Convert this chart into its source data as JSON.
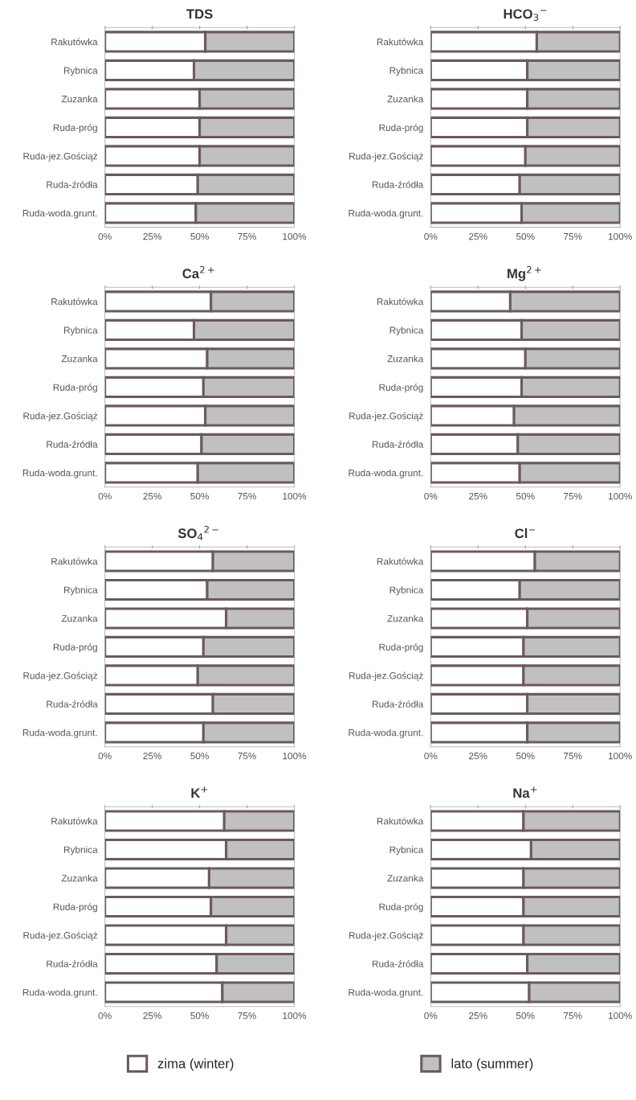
{
  "chart_data": [
    {
      "type": "bar",
      "orientation": "horizontal",
      "stacked": true,
      "title": "TDS",
      "categories": [
        "Rakutówka",
        "Rybnica",
        "Zuzanka",
        "Ruda-próg",
        "Ruda-jez.Gościąż",
        "Ruda-źródła",
        "Ruda-woda.grunt."
      ],
      "xlim": [
        0,
        100
      ],
      "xticks": [
        {
          "value": 0,
          "label": "0%"
        },
        {
          "value": 25,
          "label": "25%"
        },
        {
          "value": 50,
          "label": "50%"
        },
        {
          "value": 75,
          "label": "75%"
        },
        {
          "value": 100,
          "label": "100%"
        }
      ],
      "series": [
        {
          "color": "#ffffff",
          "values": [
            53,
            47,
            50,
            50,
            50,
            49,
            48
          ]
        },
        {
          "color": "#c0c0c0",
          "values": [
            47,
            53,
            50,
            50,
            50,
            51,
            52
          ]
        }
      ]
    },
    {
      "type": "bar",
      "orientation": "horizontal",
      "stacked": true,
      "title": "HCO$_{3}$$^{−}$",
      "categories": [
        "Rakutówka",
        "Rybnica",
        "Zuzanka",
        "Ruda-próg",
        "Ruda-jez.Gościąż",
        "Ruda-źródła",
        "Ruda-woda.grunt."
      ],
      "xlim": [
        0,
        100
      ],
      "xticks": [
        {
          "value": 0,
          "label": "0%"
        },
        {
          "value": 25,
          "label": "25%"
        },
        {
          "value": 50,
          "label": "50%"
        },
        {
          "value": 75,
          "label": "75%"
        },
        {
          "value": 100,
          "label": "100%"
        }
      ],
      "series": [
        {
          "color": "#ffffff",
          "values": [
            56,
            51,
            51,
            51,
            50,
            47,
            48
          ]
        },
        {
          "color": "#c0c0c0",
          "values": [
            44,
            49,
            49,
            49,
            50,
            53,
            52
          ]
        }
      ]
    },
    {
      "type": "bar",
      "orientation": "horizontal",
      "stacked": true,
      "title": "Ca$^{2+}$",
      "categories": [
        "Rakutówka",
        "Rybnica",
        "Zuzanka",
        "Ruda-próg",
        "Ruda-jez.Gościąż",
        "Ruda-źródła",
        "Ruda-woda.grunt."
      ],
      "xlim": [
        0,
        100
      ],
      "xticks": [
        {
          "value": 0,
          "label": "0%"
        },
        {
          "value": 25,
          "label": "25%"
        },
        {
          "value": 50,
          "label": "50%"
        },
        {
          "value": 75,
          "label": "75%"
        },
        {
          "value": 100,
          "label": "100%"
        }
      ],
      "series": [
        {
          "color": "#ffffff",
          "values": [
            56,
            47,
            54,
            52,
            53,
            51,
            49
          ]
        },
        {
          "color": "#c0c0c0",
          "values": [
            44,
            53,
            46,
            48,
            47,
            49,
            51
          ]
        }
      ]
    },
    {
      "type": "bar",
      "orientation": "horizontal",
      "stacked": true,
      "title": "Mg$^{2+}$",
      "categories": [
        "Rakutówka",
        "Rybnica",
        "Zuzanka",
        "Ruda-próg",
        "Ruda-jez.Gościąż",
        "Ruda-źródła",
        "Ruda-woda.grunt."
      ],
      "xlim": [
        0,
        100
      ],
      "xticks": [
        {
          "value": 0,
          "label": "0%"
        },
        {
          "value": 25,
          "label": "25%"
        },
        {
          "value": 50,
          "label": "50%"
        },
        {
          "value": 75,
          "label": "75%"
        },
        {
          "value": 100,
          "label": "100%"
        }
      ],
      "series": [
        {
          "color": "#ffffff",
          "values": [
            42,
            48,
            50,
            48,
            44,
            46,
            47
          ]
        },
        {
          "color": "#c0c0c0",
          "values": [
            58,
            52,
            50,
            52,
            56,
            54,
            53
          ]
        }
      ]
    },
    {
      "type": "bar",
      "orientation": "horizontal",
      "stacked": true,
      "title": "SO$_{4}$$^{2−}$",
      "categories": [
        "Rakutówka",
        "Rybnica",
        "Zuzanka",
        "Ruda-próg",
        "Ruda-jez.Gościąż",
        "Ruda-źródła",
        "Ruda-woda.grunt."
      ],
      "xlim": [
        0,
        100
      ],
      "xticks": [
        {
          "value": 0,
          "label": "0%"
        },
        {
          "value": 25,
          "label": "25%"
        },
        {
          "value": 50,
          "label": "50%"
        },
        {
          "value": 75,
          "label": "75%"
        },
        {
          "value": 100,
          "label": "100%"
        }
      ],
      "series": [
        {
          "color": "#ffffff",
          "values": [
            57,
            54,
            64,
            52,
            49,
            57,
            52
          ]
        },
        {
          "color": "#c0c0c0",
          "values": [
            43,
            46,
            36,
            48,
            51,
            43,
            48
          ]
        }
      ]
    },
    {
      "type": "bar",
      "orientation": "horizontal",
      "stacked": true,
      "title": "Cl$^{−}$",
      "categories": [
        "Rakutówka",
        "Rybnica",
        "Zuzanka",
        "Ruda-próg",
        "Ruda-jez.Gościąż",
        "Ruda-źródła",
        "Ruda-woda.grunt."
      ],
      "xlim": [
        0,
        100
      ],
      "xticks": [
        {
          "value": 0,
          "label": "0%"
        },
        {
          "value": 25,
          "label": "25%"
        },
        {
          "value": 50,
          "label": "50%"
        },
        {
          "value": 75,
          "label": "75%"
        },
        {
          "value": 100,
          "label": "100%"
        }
      ],
      "series": [
        {
          "color": "#ffffff",
          "values": [
            55,
            47,
            51,
            49,
            49,
            51,
            51
          ]
        },
        {
          "color": "#c0c0c0",
          "values": [
            45,
            53,
            49,
            51,
            51,
            49,
            49
          ]
        }
      ]
    },
    {
      "type": "bar",
      "orientation": "horizontal",
      "stacked": true,
      "title": "K$^{+}$",
      "categories": [
        "Rakutówka",
        "Rybnica",
        "Zuzanka",
        "Ruda-próg",
        "Ruda-jez.Gościąż",
        "Ruda-źródła",
        "Ruda-woda.grunt."
      ],
      "xlim": [
        0,
        100
      ],
      "xticks": [
        {
          "value": 0,
          "label": "0%"
        },
        {
          "value": 25,
          "label": "25%"
        },
        {
          "value": 50,
          "label": "50%"
        },
        {
          "value": 75,
          "label": "75%"
        },
        {
          "value": 100,
          "label": "100%"
        }
      ],
      "series": [
        {
          "color": "#ffffff",
          "values": [
            63,
            64,
            55,
            56,
            64,
            59,
            62
          ]
        },
        {
          "color": "#c0c0c0",
          "values": [
            37,
            36,
            45,
            44,
            36,
            41,
            38
          ]
        }
      ]
    },
    {
      "type": "bar",
      "orientation": "horizontal",
      "stacked": true,
      "title": "Na$^{+}$",
      "categories": [
        "Rakutówka",
        "Rybnica",
        "Zuzanka",
        "Ruda-próg",
        "Ruda-jez.Gościąż",
        "Ruda-źródła",
        "Ruda-woda.grunt."
      ],
      "xlim": [
        0,
        100
      ],
      "xticks": [
        {
          "value": 0,
          "label": "0%"
        },
        {
          "value": 25,
          "label": "25%"
        },
        {
          "value": 50,
          "label": "50%"
        },
        {
          "value": 75,
          "label": "75%"
        },
        {
          "value": 100,
          "label": "100%"
        }
      ],
      "legend": "bottom",
      "series": [
        {
          "name": "zima (winter)",
          "color": "#ffffff",
          "values": [
            49,
            53,
            49,
            49,
            49,
            51,
            52
          ]
        },
        {
          "name": "lato (summer)",
          "color": "#c0c0c0",
          "values": [
            51,
            47,
            51,
            51,
            51,
            49,
            48
          ]
        }
      ]
    }
  ]
}
